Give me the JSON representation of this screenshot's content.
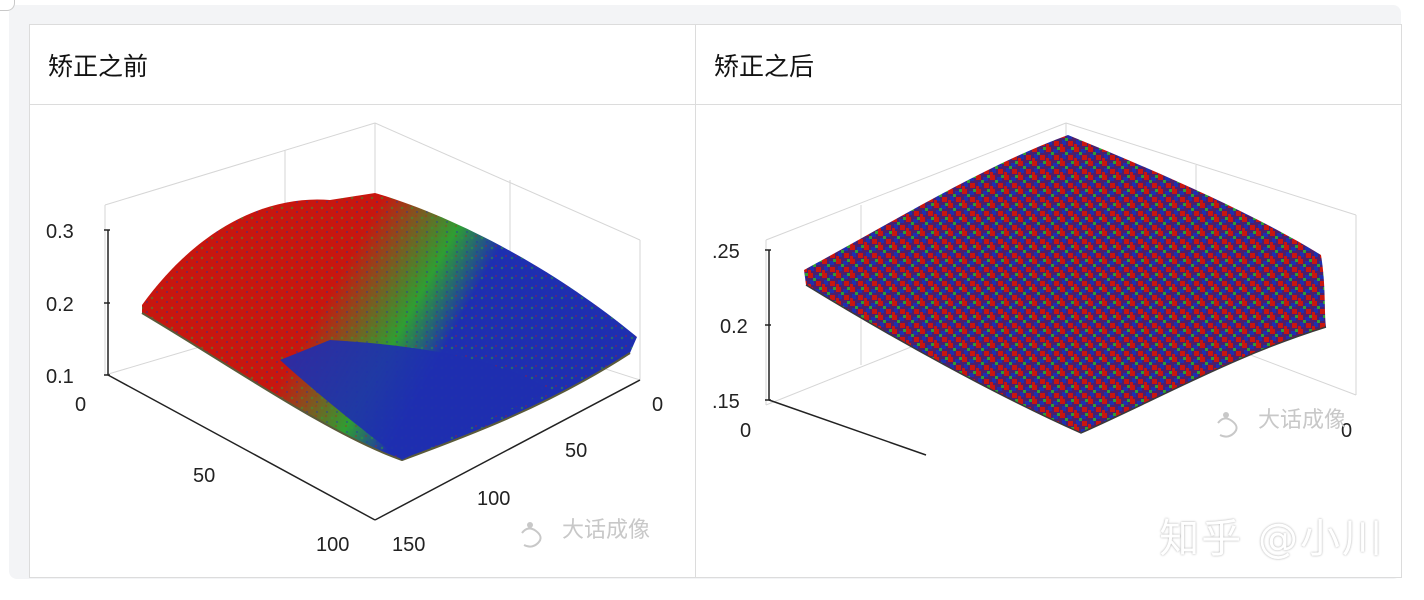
{
  "table": {
    "headers": [
      "矫正之前",
      "矫正之后"
    ]
  },
  "before_plot": {
    "z_ticks": [
      "0.3",
      "0.2",
      "0.1"
    ],
    "x_ticks": [
      "0",
      "50",
      "100"
    ],
    "y_ticks": [
      "0",
      "50",
      "100",
      "150"
    ],
    "watermark": "大话成像"
  },
  "after_plot": {
    "z_ticks": [
      ".25",
      "0.2",
      ".15"
    ],
    "x_ticks": [
      "0"
    ],
    "y_ticks": [
      "0"
    ],
    "watermark": "大话成像"
  },
  "footer": {
    "brand": "知乎 @小川"
  },
  "colors": {
    "red": "#c8160f",
    "green": "#2e9e33",
    "blue": "#1e2fb0"
  }
}
